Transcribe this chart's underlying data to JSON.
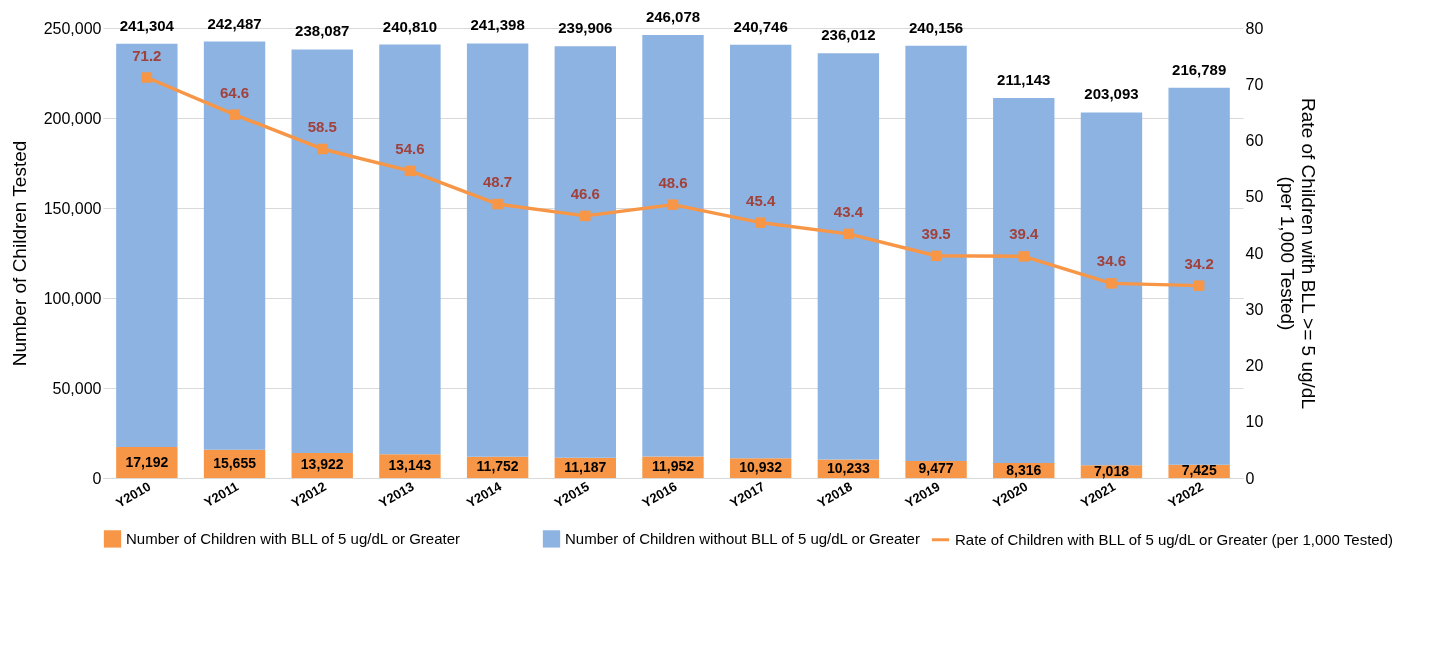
{
  "chart_data": {
    "type": "bar",
    "stacked": true,
    "ylabel": "Number of Children Tested",
    "y2label": "Rate of Children with BLL >= 5 ug/dL\n(per 1,000 Tested)",
    "categories": [
      "Y2010",
      "Y2011",
      "Y2012",
      "Y2013",
      "Y2014",
      "Y2015",
      "Y2016",
      "Y2017",
      "Y2018",
      "Y2019",
      "Y2020",
      "Y2021",
      "Y2022"
    ],
    "series": [
      {
        "name": "Number of Children with BLL of 5 ug/dL or Greater",
        "type": "bar",
        "color": "#f79646",
        "values": [
          17192,
          15655,
          13922,
          13143,
          11752,
          11187,
          11952,
          10932,
          10233,
          9477,
          8316,
          7018,
          7425
        ],
        "value_labels": [
          "17,192",
          "15,655",
          "13,922",
          "13,143",
          "11,752",
          "11,187",
          "11,952",
          "10,932",
          "10,233",
          "9,477",
          "8,316",
          "7,018",
          "7,425"
        ]
      },
      {
        "name": "Number of Children without BLL of 5 ug/dL or Greater",
        "type": "bar",
        "color": "#8db3e2",
        "values": [
          224112,
          226832,
          224165,
          227667,
          229646,
          228719,
          234126,
          229814,
          225779,
          230679,
          202827,
          196075,
          209364
        ]
      },
      {
        "name": "Rate of Children with BLL of 5 ug/dL or Greater (per 1,000 Tested)",
        "type": "line",
        "axis": "y2",
        "color": "#f79646",
        "marker": "square",
        "line_style": "solid",
        "values": [
          71.2,
          64.6,
          58.5,
          54.6,
          48.7,
          46.6,
          48.6,
          45.4,
          43.4,
          39.5,
          39.4,
          34.6,
          34.2
        ],
        "value_labels": [
          "71.2",
          "64.6",
          "58.5",
          "54.6",
          "48.7",
          "46.6",
          "48.6",
          "45.4",
          "43.4",
          "39.5",
          "39.4",
          "34.6",
          "34.2"
        ]
      }
    ],
    "totals": [
      "241,304",
      "242,487",
      "238,087",
      "240,810",
      "241,398",
      "239,906",
      "246,078",
      "240,746",
      "236,012",
      "240,156",
      "211,143",
      "203,093",
      "216,789"
    ],
    "ylim": [
      0,
      250000
    ],
    "yticks": [
      0,
      {
        "value": 50000,
        "label": "50,000"
      },
      {
        "value": 100000,
        "label": "100,000"
      },
      {
        "value": 150000,
        "label": "150,000"
      },
      {
        "value": 200000,
        "label": "200,000"
      },
      {
        "value": 250000,
        "label": "250,000"
      }
    ],
    "y2lim": [
      0,
      80
    ],
    "y2ticks": [
      0,
      10,
      20,
      30,
      40,
      50,
      60,
      70,
      80
    ],
    "grid": "y",
    "legend": "bottom"
  }
}
